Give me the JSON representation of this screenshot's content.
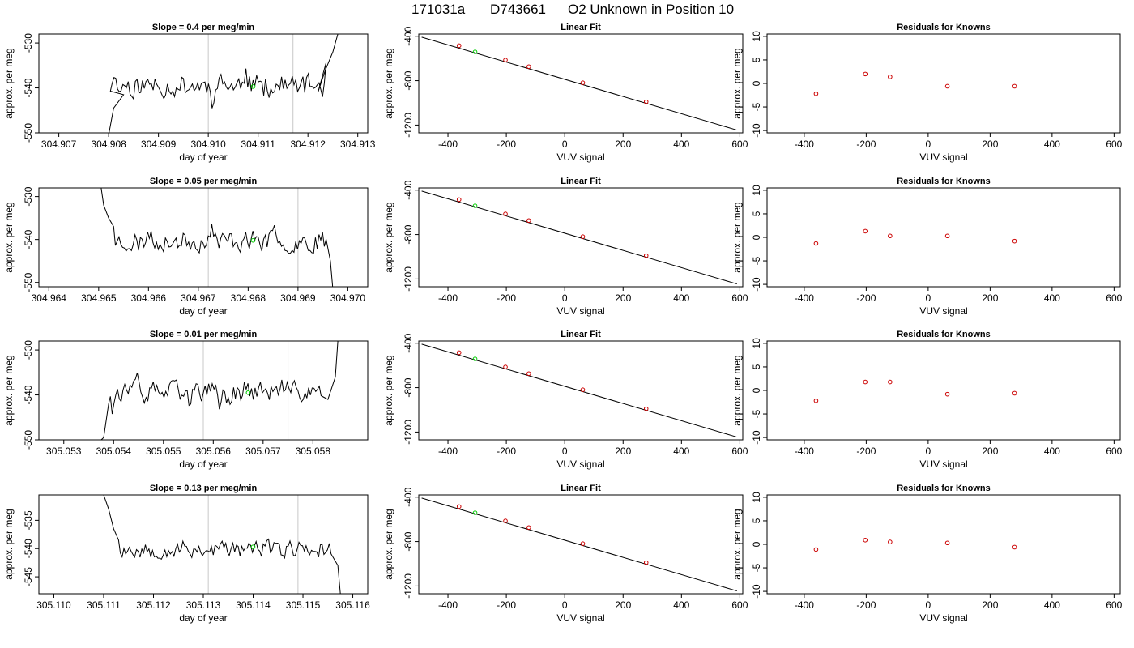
{
  "figure": {
    "title_code": "171031a",
    "title_id": "D743661",
    "title_desc": "O2 Unknown in Position  10"
  },
  "colors": {
    "line": "#000000",
    "known": "#cc0000",
    "unknown": "#00cc00",
    "guide": "#c8c8c8"
  },
  "chart_data": [
    {
      "type": "line",
      "panel": "timeseries",
      "row": 1,
      "title": "Slope =  0.4  per meg/min",
      "xlabel": "day of year",
      "ylabel": "approx. per meg",
      "xlim": [
        304.9066,
        304.9132
      ],
      "ylim": [
        -550,
        -528
      ],
      "xticks": [
        304.907,
        304.908,
        304.909,
        304.91,
        304.911,
        304.912,
        304.913
      ],
      "xtick_labels": [
        "304.907",
        "304.908",
        "304.909",
        "304.910",
        "304.911",
        "304.912",
        "304.913"
      ],
      "yticks": [
        -550,
        -540,
        -530
      ],
      "ytick_labels": [
        "-550",
        "-540",
        "-530"
      ],
      "vlines": [
        304.91,
        304.9117
      ],
      "unknown_point": {
        "x": 304.9109,
        "y": -539.7
      },
      "trace": {
        "start": 304.908,
        "end": 304.9124,
        "base": -539.5,
        "amp": 2.6,
        "seed": 11,
        "lead": [
          [
            304.908,
            -550.5
          ],
          [
            304.9081,
            -544.5
          ],
          [
            304.9083,
            -541.5
          ]
        ],
        "tail": [
          [
            304.9122,
            -541.0
          ],
          [
            304.91235,
            -536.0
          ],
          [
            304.9125,
            -532.0
          ],
          [
            304.9126,
            -528.0
          ]
        ]
      }
    },
    {
      "type": "line",
      "panel": "timeseries",
      "row": 2,
      "title": "Slope =  0.05  per meg/min",
      "xlabel": "day of year",
      "ylabel": "approx. per meg",
      "xlim": [
        304.9638,
        304.9704
      ],
      "ylim": [
        -551,
        -528
      ],
      "xticks": [
        304.964,
        304.965,
        304.966,
        304.967,
        304.968,
        304.969,
        304.97
      ],
      "xtick_labels": [
        "304.964",
        "304.965",
        "304.966",
        "304.967",
        "304.968",
        "304.969",
        "304.970"
      ],
      "yticks": [
        -550,
        -540,
        -530
      ],
      "ytick_labels": [
        "-550",
        "-540",
        "-530"
      ],
      "vlines": [
        304.9672,
        304.969
      ],
      "unknown_point": {
        "x": 304.9681,
        "y": -540.2
      },
      "trace": {
        "start": 304.9653,
        "end": 304.9696,
        "base": -540.3,
        "amp": 2.4,
        "seed": 23,
        "lead": [
          [
            304.96505,
            -528.0
          ],
          [
            304.9651,
            -532.0
          ],
          [
            304.9652,
            -535.0
          ],
          [
            304.9653,
            -537.0
          ]
        ],
        "tail": [
          [
            304.96965,
            -545.0
          ],
          [
            304.9697,
            -551.5
          ]
        ]
      }
    },
    {
      "type": "line",
      "panel": "timeseries",
      "row": 3,
      "title": "Slope =  0.01  per meg/min",
      "xlabel": "day of year",
      "ylabel": "approx. per meg",
      "xlim": [
        305.0525,
        305.0591
      ],
      "ylim": [
        -550,
        -528
      ],
      "xticks": [
        305.053,
        305.054,
        305.055,
        305.056,
        305.057,
        305.058
      ],
      "xtick_labels": [
        "305.053",
        "305.054",
        "305.055",
        "305.056",
        "305.057",
        "305.058"
      ],
      "yticks": [
        -550,
        -540,
        -530
      ],
      "ytick_labels": [
        "-550",
        "-540",
        "-530"
      ],
      "vlines": [
        305.0558,
        305.0575
      ],
      "unknown_point": {
        "x": 305.0567,
        "y": -539.5
      },
      "trace": {
        "start": 305.0539,
        "end": 305.0582,
        "base": -539.3,
        "amp": 2.3,
        "seed": 37,
        "lead": [
          [
            305.0537,
            -550.5
          ],
          [
            305.0538,
            -549.5
          ],
          [
            305.0539,
            -542.0
          ]
        ],
        "tail": [
          [
            305.0583,
            -541.0
          ],
          [
            305.05845,
            -536.0
          ],
          [
            305.0585,
            -528.0
          ]
        ]
      }
    },
    {
      "type": "line",
      "panel": "timeseries",
      "row": 4,
      "title": "Slope =  0.13  per meg/min",
      "xlabel": "day of year",
      "ylabel": "approx. per meg",
      "xlim": [
        305.1097,
        305.1163
      ],
      "ylim": [
        -548,
        -530.5
      ],
      "xticks": [
        305.11,
        305.111,
        305.112,
        305.113,
        305.114,
        305.115,
        305.116
      ],
      "xtick_labels": [
        "305.110",
        "305.111",
        "305.112",
        "305.113",
        "305.114",
        "305.115",
        "305.116"
      ],
      "yticks": [
        -545,
        -540,
        -535
      ],
      "ytick_labels": [
        "-545",
        "-540",
        "-535"
      ],
      "vlines": [
        305.1131,
        305.1149
      ],
      "unknown_point": {
        "x": 305.114,
        "y": -539.7
      },
      "trace": {
        "start": 305.1113,
        "end": 305.1156,
        "base": -540.1,
        "amp": 1.6,
        "seed": 53,
        "lead": [
          [
            305.111,
            -530.5
          ],
          [
            305.1111,
            -533.0
          ],
          [
            305.1112,
            -536.5
          ],
          [
            305.1113,
            -538.5
          ]
        ],
        "tail": [
          [
            305.1157,
            -543.0
          ],
          [
            305.11575,
            -548.0
          ]
        ]
      }
    },
    {
      "type": "scatter",
      "panel": "fit",
      "row": 1,
      "title": "Linear Fit",
      "xlabel": "VUV signal",
      "ylabel": "approx. per meg",
      "xlim": [
        -500,
        610
      ],
      "ylim": [
        -1270,
        -380
      ],
      "xticks": [
        -400,
        -200,
        0,
        200,
        400,
        600
      ],
      "yticks": [
        -1200,
        -800,
        -400
      ],
      "xtick_labels": [
        "-400",
        "-200",
        "0",
        "200",
        "400",
        "600"
      ],
      "ytick_labels": [
        "-1200",
        "-800",
        "-400"
      ],
      "line": {
        "x": [
          -490,
          590
        ],
        "y": [
          -408,
          -1245
        ]
      },
      "knowns": {
        "x": [
          -362,
          -203,
          -123,
          62,
          279
        ],
        "y": [
          -485,
          -614,
          -674,
          -819,
          -990
        ]
      },
      "unknown": {
        "x": -307,
        "y": -541
      }
    },
    {
      "type": "scatter",
      "panel": "fit",
      "row": 2,
      "title": "Linear Fit",
      "xlabel": "VUV signal",
      "ylabel": "approx. per meg",
      "xlim": [
        -500,
        610
      ],
      "ylim": [
        -1270,
        -380
      ],
      "xticks": [
        -400,
        -200,
        0,
        200,
        400,
        600
      ],
      "yticks": [
        -1200,
        -800,
        -400
      ],
      "xtick_labels": [
        "-400",
        "-200",
        "0",
        "200",
        "400",
        "600"
      ],
      "ytick_labels": [
        "-1200",
        "-800",
        "-400"
      ],
      "line": {
        "x": [
          -490,
          590
        ],
        "y": [
          -408,
          -1245
        ]
      },
      "knowns": {
        "x": [
          -362,
          -203,
          -123,
          62,
          279
        ],
        "y": [
          -485,
          -614,
          -674,
          -819,
          -990
        ]
      },
      "unknown": {
        "x": -307,
        "y": -541
      }
    },
    {
      "type": "scatter",
      "panel": "fit",
      "row": 3,
      "title": "Linear Fit",
      "xlabel": "VUV signal",
      "ylabel": "approx. per meg",
      "xlim": [
        -500,
        610
      ],
      "ylim": [
        -1270,
        -380
      ],
      "xticks": [
        -400,
        -200,
        0,
        200,
        400,
        600
      ],
      "yticks": [
        -1200,
        -800,
        -400
      ],
      "xtick_labels": [
        "-400",
        "-200",
        "0",
        "200",
        "400",
        "600"
      ],
      "ytick_labels": [
        "-1200",
        "-800",
        "-400"
      ],
      "line": {
        "x": [
          -490,
          590
        ],
        "y": [
          -408,
          -1245
        ]
      },
      "knowns": {
        "x": [
          -362,
          -203,
          -123,
          62,
          279
        ],
        "y": [
          -485,
          -614,
          -674,
          -819,
          -990
        ]
      },
      "unknown": {
        "x": -307,
        "y": -541
      }
    },
    {
      "type": "scatter",
      "panel": "fit",
      "row": 4,
      "title": "Linear Fit",
      "xlabel": "VUV signal",
      "ylabel": "approx. per meg",
      "xlim": [
        -500,
        610
      ],
      "ylim": [
        -1270,
        -380
      ],
      "xticks": [
        -400,
        -200,
        0,
        200,
        400,
        600
      ],
      "yticks": [
        -1200,
        -800,
        -400
      ],
      "xtick_labels": [
        "-400",
        "-200",
        "0",
        "200",
        "400",
        "600"
      ],
      "ytick_labels": [
        "-1200",
        "-800",
        "-400"
      ],
      "line": {
        "x": [
          -490,
          590
        ],
        "y": [
          -408,
          -1245
        ]
      },
      "knowns": {
        "x": [
          -362,
          -203,
          -123,
          62,
          279
        ],
        "y": [
          -485,
          -614,
          -674,
          -819,
          -990
        ]
      },
      "unknown": {
        "x": -307,
        "y": -541
      }
    },
    {
      "type": "scatter",
      "panel": "residuals",
      "row": 1,
      "title": "Residuals for Knowns",
      "xlabel": "VUV signal",
      "ylabel": "approx. per meg",
      "xlim": [
        -520,
        620
      ],
      "ylim": [
        -10.5,
        10.5
      ],
      "xticks": [
        -400,
        -200,
        0,
        200,
        400,
        600
      ],
      "yticks": [
        -10,
        -5,
        0,
        5,
        10
      ],
      "xtick_labels": [
        "-400",
        "-200",
        "0",
        "200",
        "400",
        "600"
      ],
      "ytick_labels": [
        "-10",
        "-5",
        "0",
        "5",
        "10"
      ],
      "points": {
        "x": [
          -362,
          -203,
          -123,
          62,
          279
        ],
        "y": [
          -2.2,
          2.0,
          1.4,
          -0.6,
          -0.6
        ]
      }
    },
    {
      "type": "scatter",
      "panel": "residuals",
      "row": 2,
      "title": "Residuals for Knowns",
      "xlabel": "VUV signal",
      "ylabel": "approx. per meg",
      "xlim": [
        -520,
        620
      ],
      "ylim": [
        -10.5,
        10.5
      ],
      "xticks": [
        -400,
        -200,
        0,
        200,
        400,
        600
      ],
      "yticks": [
        -10,
        -5,
        0,
        5,
        10
      ],
      "xtick_labels": [
        "-400",
        "-200",
        "0",
        "200",
        "400",
        "600"
      ],
      "ytick_labels": [
        "-10",
        "-5",
        "0",
        "5",
        "10"
      ],
      "points": {
        "x": [
          -362,
          -203,
          -123,
          62,
          279
        ],
        "y": [
          -1.3,
          1.3,
          0.3,
          0.3,
          -0.8
        ]
      }
    },
    {
      "type": "scatter",
      "panel": "residuals",
      "row": 3,
      "title": "Residuals for Knowns",
      "xlabel": "VUV signal",
      "ylabel": "approx. per meg",
      "xlim": [
        -520,
        620
      ],
      "ylim": [
        -10.5,
        10.5
      ],
      "xticks": [
        -400,
        -200,
        0,
        200,
        400,
        600
      ],
      "yticks": [
        -10,
        -5,
        0,
        5,
        10
      ],
      "xtick_labels": [
        "-400",
        "-200",
        "0",
        "200",
        "400",
        "600"
      ],
      "ytick_labels": [
        "-10",
        "-5",
        "0",
        "5",
        "10"
      ],
      "points": {
        "x": [
          -362,
          -203,
          -123,
          62,
          279
        ],
        "y": [
          -2.2,
          1.8,
          1.8,
          -0.8,
          -0.6
        ]
      }
    },
    {
      "type": "scatter",
      "panel": "residuals",
      "row": 4,
      "title": "Residuals for Knowns",
      "xlabel": "VUV signal",
      "ylabel": "approx. per meg",
      "xlim": [
        -520,
        620
      ],
      "ylim": [
        -10.5,
        10.5
      ],
      "xticks": [
        -400,
        -200,
        0,
        200,
        400,
        600
      ],
      "yticks": [
        -10,
        -5,
        0,
        5,
        10
      ],
      "xtick_labels": [
        "-400",
        "-200",
        "0",
        "200",
        "400",
        "600"
      ],
      "ytick_labels": [
        "-10",
        "-5",
        "0",
        "5",
        "10"
      ],
      "points": {
        "x": [
          -362,
          -203,
          -123,
          62,
          279
        ],
        "y": [
          -1.1,
          0.9,
          0.5,
          0.3,
          -0.6
        ]
      }
    }
  ]
}
